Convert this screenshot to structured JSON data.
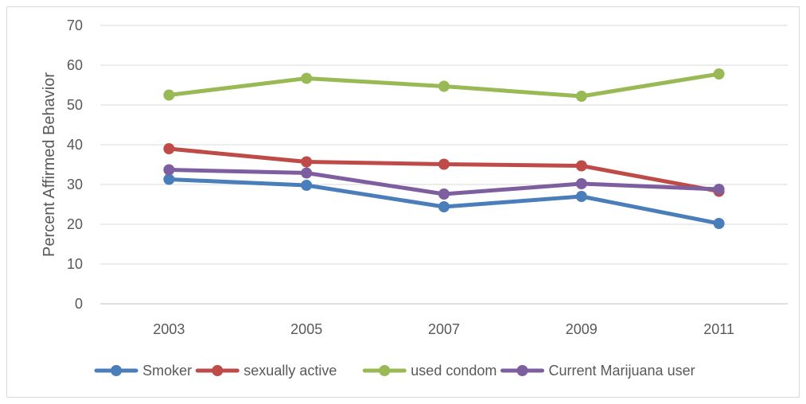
{
  "chart_data": {
    "type": "line",
    "title": "",
    "xlabel": "",
    "ylabel": "Percent Affirmed Behavior",
    "ylim": [
      0,
      70
    ],
    "yticks": [
      0,
      10,
      20,
      30,
      40,
      50,
      60,
      70
    ],
    "grid": true,
    "legend_position": "bottom",
    "categories": [
      "2003",
      "2005",
      "2007",
      "2009",
      "2011"
    ],
    "series": [
      {
        "name": "Smoker",
        "color": "#4a7ebb",
        "values": [
          31.3,
          29.8,
          24.4,
          27.0,
          20.2
        ]
      },
      {
        "name": "sexually active",
        "color": "#be4b48",
        "values": [
          39.0,
          35.7,
          35.1,
          34.7,
          28.3
        ]
      },
      {
        "name": "used condom",
        "color": "#98b954",
        "values": [
          52.5,
          56.7,
          54.7,
          52.2,
          57.8
        ]
      },
      {
        "name": "Current Marijuana user",
        "color": "#7d5fa0",
        "values": [
          33.7,
          32.9,
          27.6,
          30.2,
          28.8
        ]
      }
    ]
  }
}
